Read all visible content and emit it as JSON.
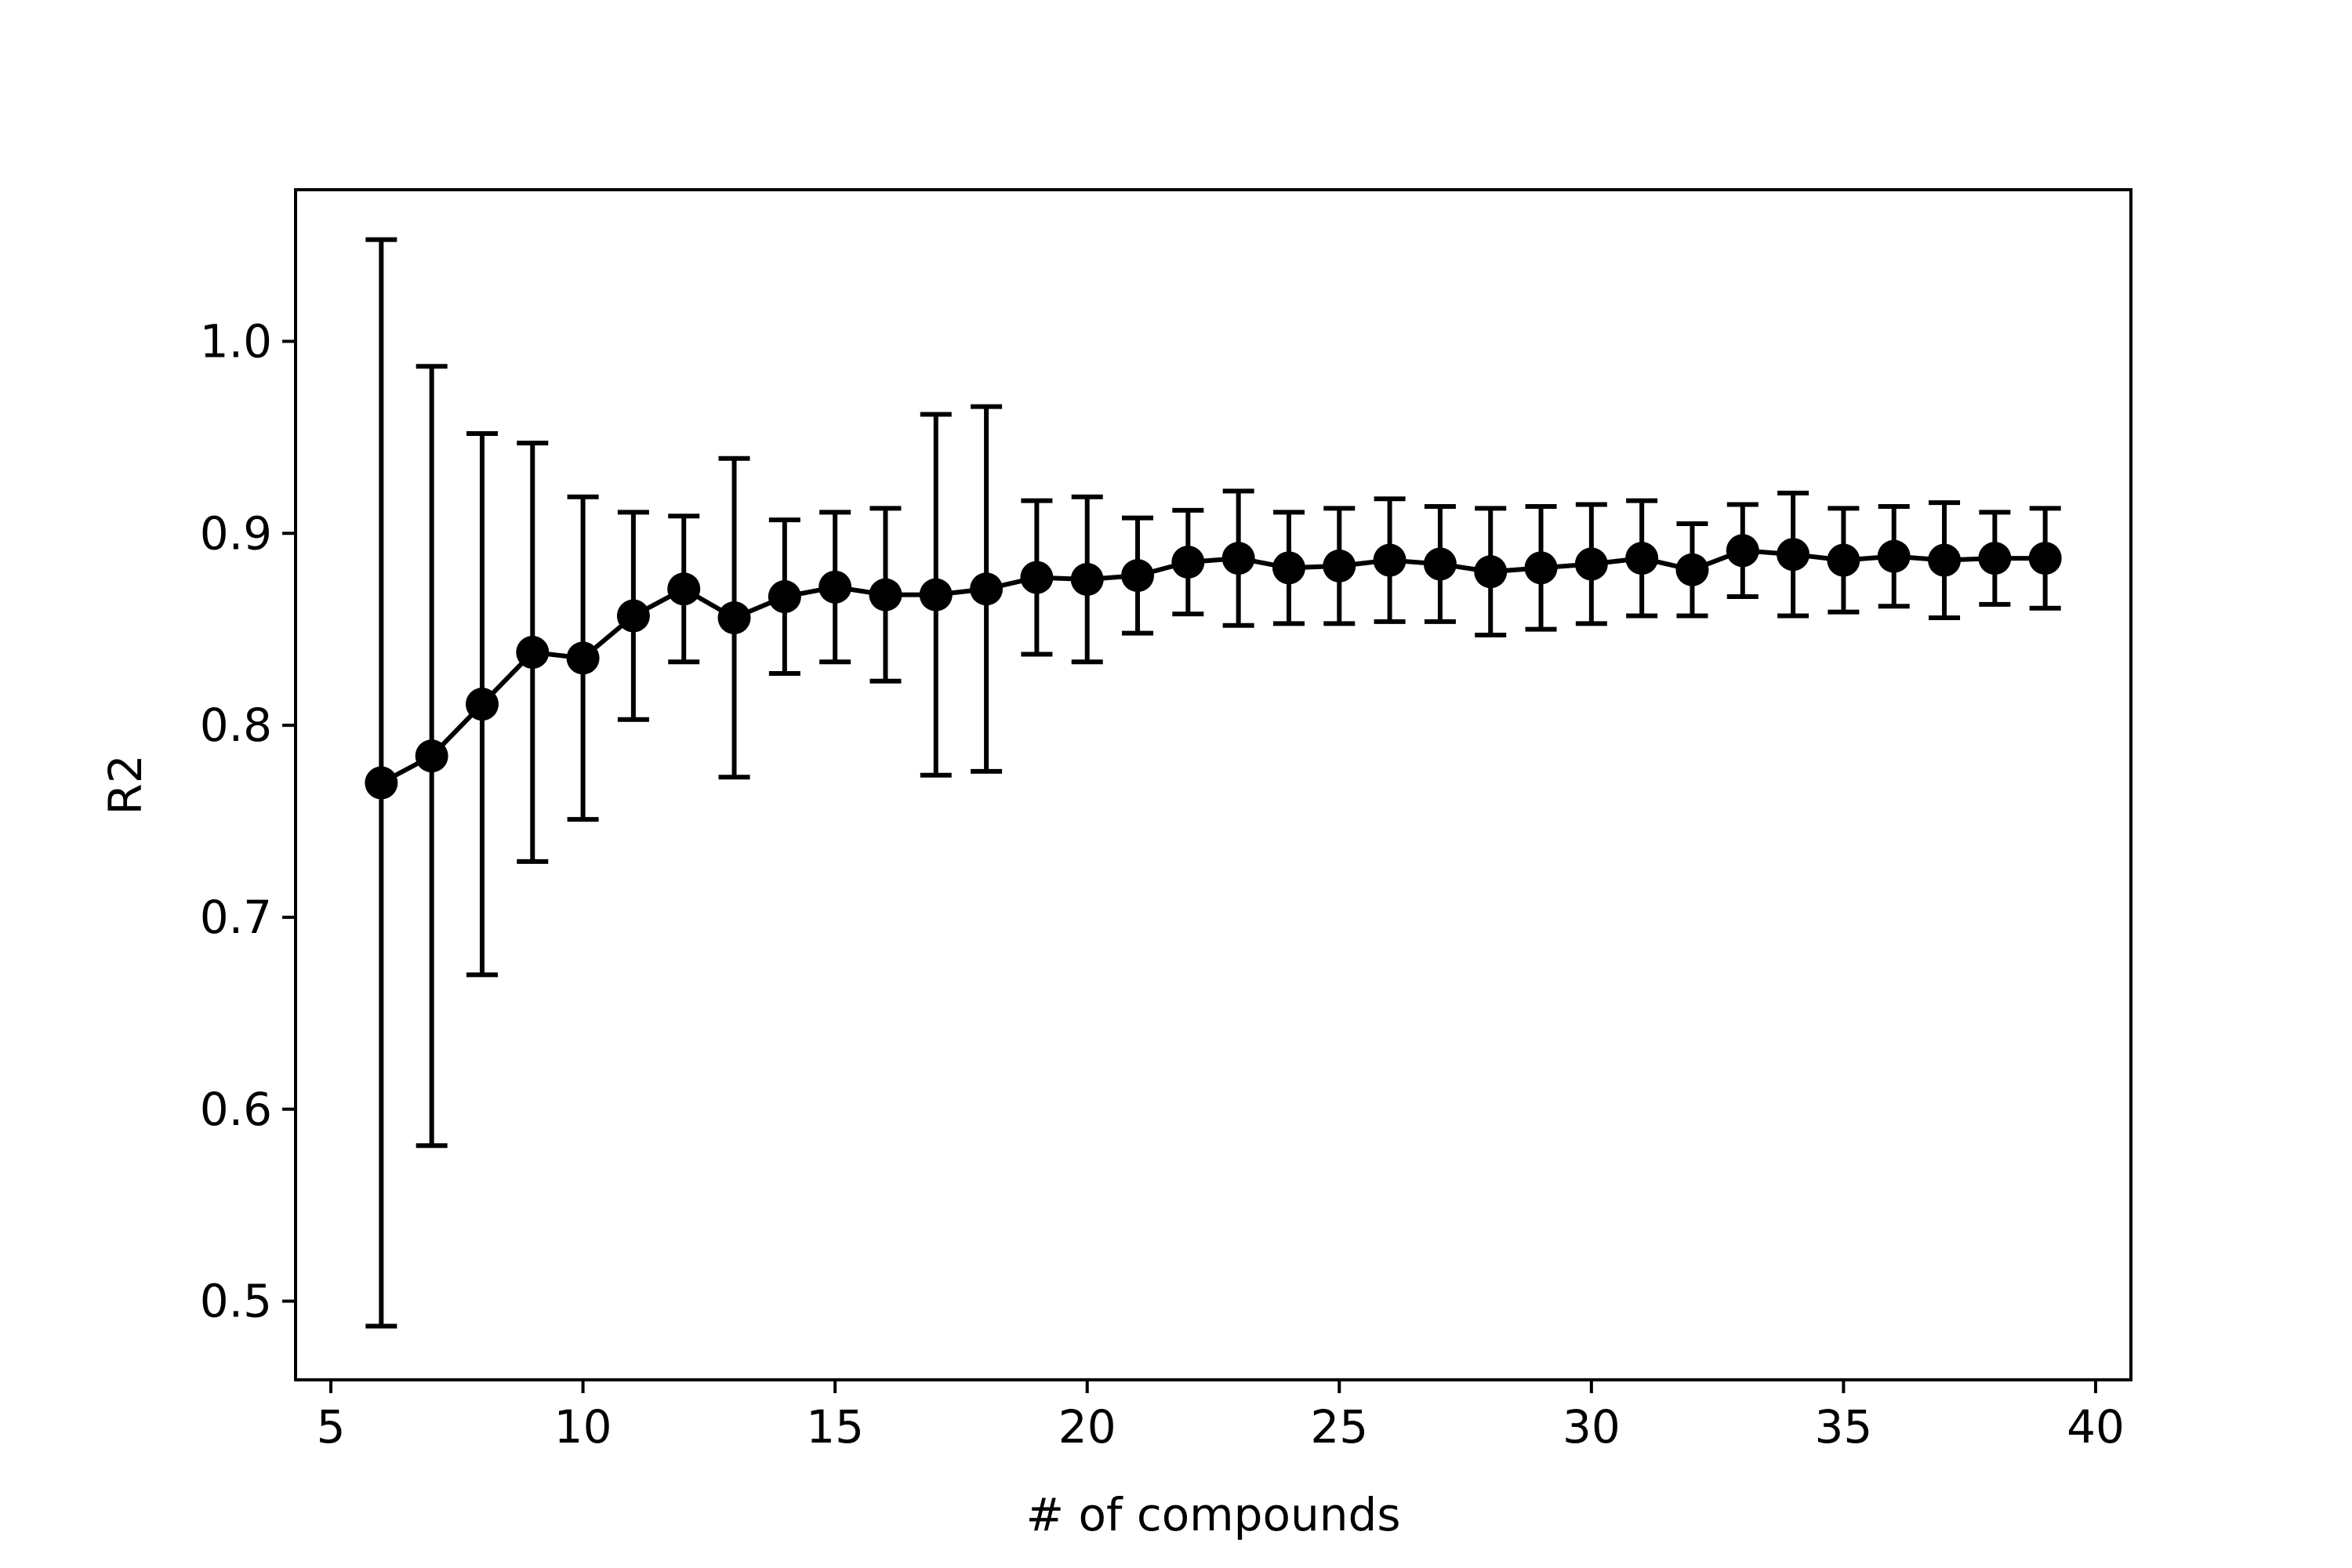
{
  "chart_data": {
    "type": "line",
    "title": "",
    "xlabel": "# of compounds",
    "ylabel": "R2",
    "xlim": [
      4.3,
      40.7
    ],
    "ylim": [
      0.459,
      1.079
    ],
    "xticks": [
      5,
      10,
      15,
      20,
      25,
      30,
      35,
      40
    ],
    "xtick_labels": [
      "5",
      "10",
      "15",
      "20",
      "25",
      "30",
      "35",
      "40"
    ],
    "yticks": [
      0.5,
      0.6,
      0.7,
      0.8,
      0.9,
      1.0
    ],
    "ytick_labels": [
      "0.5",
      "0.6",
      "0.7",
      "0.8",
      "0.9",
      "1.0"
    ],
    "grid": false,
    "legend": false,
    "series": [
      {
        "x": [
          6,
          7,
          8,
          9,
          10,
          11,
          12,
          13,
          14,
          15,
          16,
          17,
          18,
          19,
          20,
          21,
          22,
          23,
          24,
          25,
          26,
          27,
          28,
          29,
          30,
          31,
          32,
          33,
          34,
          35,
          36,
          37,
          38,
          39
        ],
        "y": [
          0.77,
          0.784,
          0.811,
          0.838,
          0.835,
          0.857,
          0.871,
          0.856,
          0.867,
          0.872,
          0.868,
          0.868,
          0.871,
          0.877,
          0.876,
          0.878,
          0.885,
          0.887,
          0.882,
          0.883,
          0.886,
          0.884,
          0.88,
          0.882,
          0.884,
          0.887,
          0.881,
          0.891,
          0.889,
          0.886,
          0.888,
          0.886,
          0.887,
          0.887
        ],
        "yerr": [
          0.283,
          0.203,
          0.141,
          0.109,
          0.084,
          0.054,
          0.038,
          0.083,
          0.04,
          0.039,
          0.045,
          0.094,
          0.095,
          0.04,
          0.043,
          0.03,
          0.027,
          0.035,
          0.029,
          0.03,
          0.032,
          0.03,
          0.033,
          0.032,
          0.031,
          0.03,
          0.024,
          0.024,
          0.032,
          0.027,
          0.026,
          0.03,
          0.024,
          0.026
        ],
        "color": "#000000",
        "marker": "circle",
        "errorbars": true
      }
    ]
  }
}
